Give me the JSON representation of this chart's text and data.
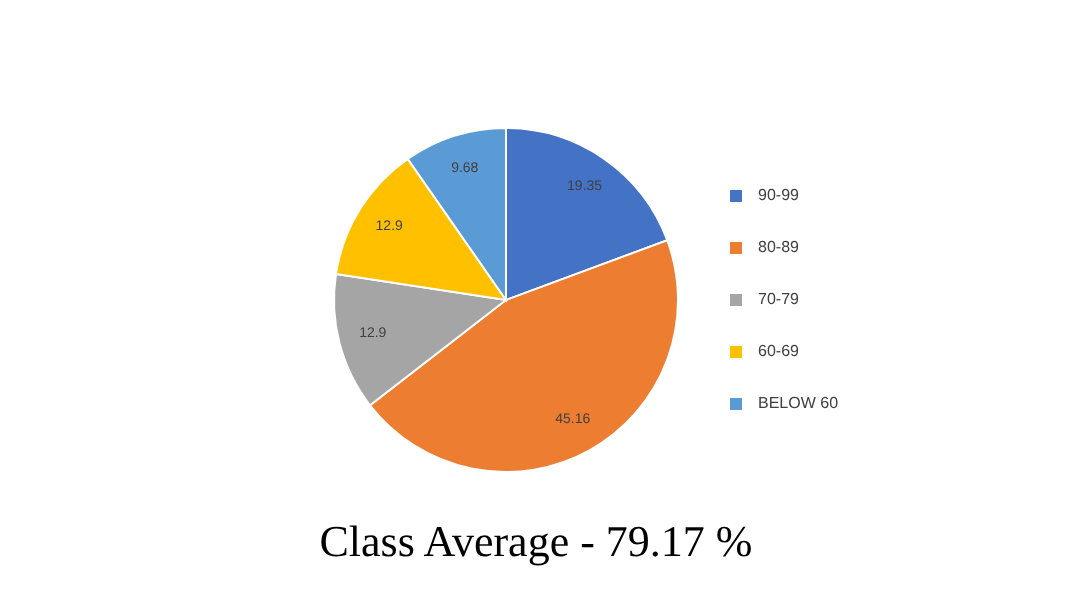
{
  "chart_data": {
    "type": "pie",
    "title": "Class Average - 79.17 %",
    "categories": [
      "90-99",
      "80-89",
      "70-79",
      "60-69",
      "BELOW 60"
    ],
    "values": [
      19.35,
      45.16,
      12.9,
      12.9,
      9.68
    ],
    "colors": [
      "#4472c4",
      "#ed7d31",
      "#a5a5a5",
      "#ffc000",
      "#5b9bd5"
    ],
    "data_labels": true,
    "legend": "right"
  }
}
